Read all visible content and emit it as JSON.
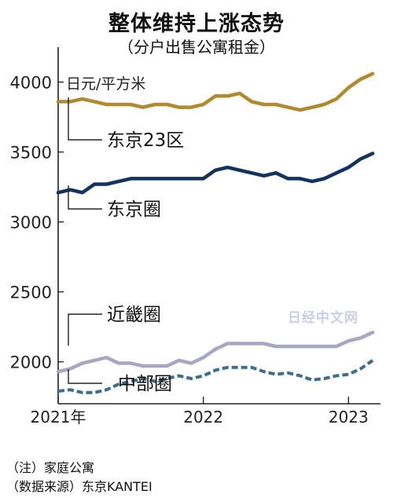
{
  "title": "整体维持上涨态势",
  "subtitle": "（分户出售公寓租金）",
  "watermark": "日经中文网",
  "notes": [
    "（注）家庭公寓",
    "（数据来源）东京KANTEI"
  ],
  "chart_data": {
    "type": "line",
    "ylabel": "日元/平方米",
    "ylim": [
      1700,
      4250
    ],
    "yticks": [
      2000,
      2500,
      3000,
      3500,
      4000
    ],
    "xlim": [
      2021.0,
      2023.22
    ],
    "xticks": [
      {
        "value": 2021.0,
        "label": "2021年"
      },
      {
        "value": 2022.0,
        "label": "2022"
      },
      {
        "value": 2023.0,
        "label": "2023"
      }
    ],
    "x": [
      2021.0,
      2021.083,
      2021.167,
      2021.25,
      2021.333,
      2021.417,
      2021.5,
      2021.583,
      2021.667,
      2021.75,
      2021.833,
      2021.917,
      2022.0,
      2022.083,
      2022.167,
      2022.25,
      2022.333,
      2022.417,
      2022.5,
      2022.583,
      2022.667,
      2022.75,
      2022.833,
      2022.917,
      2023.0,
      2023.083,
      2023.167
    ],
    "grid": false,
    "series": [
      {
        "name": "东京23区",
        "color": "#b08a2e",
        "dashed": false,
        "values": [
          3860,
          3860,
          3880,
          3860,
          3840,
          3840,
          3840,
          3820,
          3840,
          3840,
          3820,
          3820,
          3840,
          3900,
          3900,
          3920,
          3860,
          3840,
          3840,
          3820,
          3800,
          3820,
          3840,
          3880,
          3960,
          4020,
          4060
        ]
      },
      {
        "name": "东京圈",
        "color": "#13325e",
        "dashed": false,
        "values": [
          3210,
          3230,
          3210,
          3270,
          3270,
          3290,
          3310,
          3310,
          3310,
          3310,
          3310,
          3310,
          3310,
          3370,
          3390,
          3370,
          3350,
          3330,
          3350,
          3310,
          3310,
          3290,
          3310,
          3350,
          3390,
          3450,
          3490
        ]
      },
      {
        "name": "近畿圈",
        "color": "#a7a7c3",
        "dashed": false,
        "values": [
          1930,
          1950,
          1990,
          2010,
          2030,
          1990,
          1990,
          1970,
          1970,
          1970,
          2010,
          1990,
          2030,
          2090,
          2130,
          2130,
          2130,
          2130,
          2110,
          2110,
          2110,
          2110,
          2110,
          2110,
          2150,
          2170,
          2210
        ]
      },
      {
        "name": "中部圈",
        "color": "#3d6d8d",
        "dashed": true,
        "values": [
          1790,
          1800,
          1780,
          1780,
          1800,
          1840,
          1860,
          1880,
          1860,
          1880,
          1900,
          1880,
          1900,
          1940,
          1960,
          1960,
          1960,
          1930,
          1910,
          1920,
          1900,
          1870,
          1880,
          1900,
          1910,
          1950,
          2010
        ]
      }
    ]
  }
}
